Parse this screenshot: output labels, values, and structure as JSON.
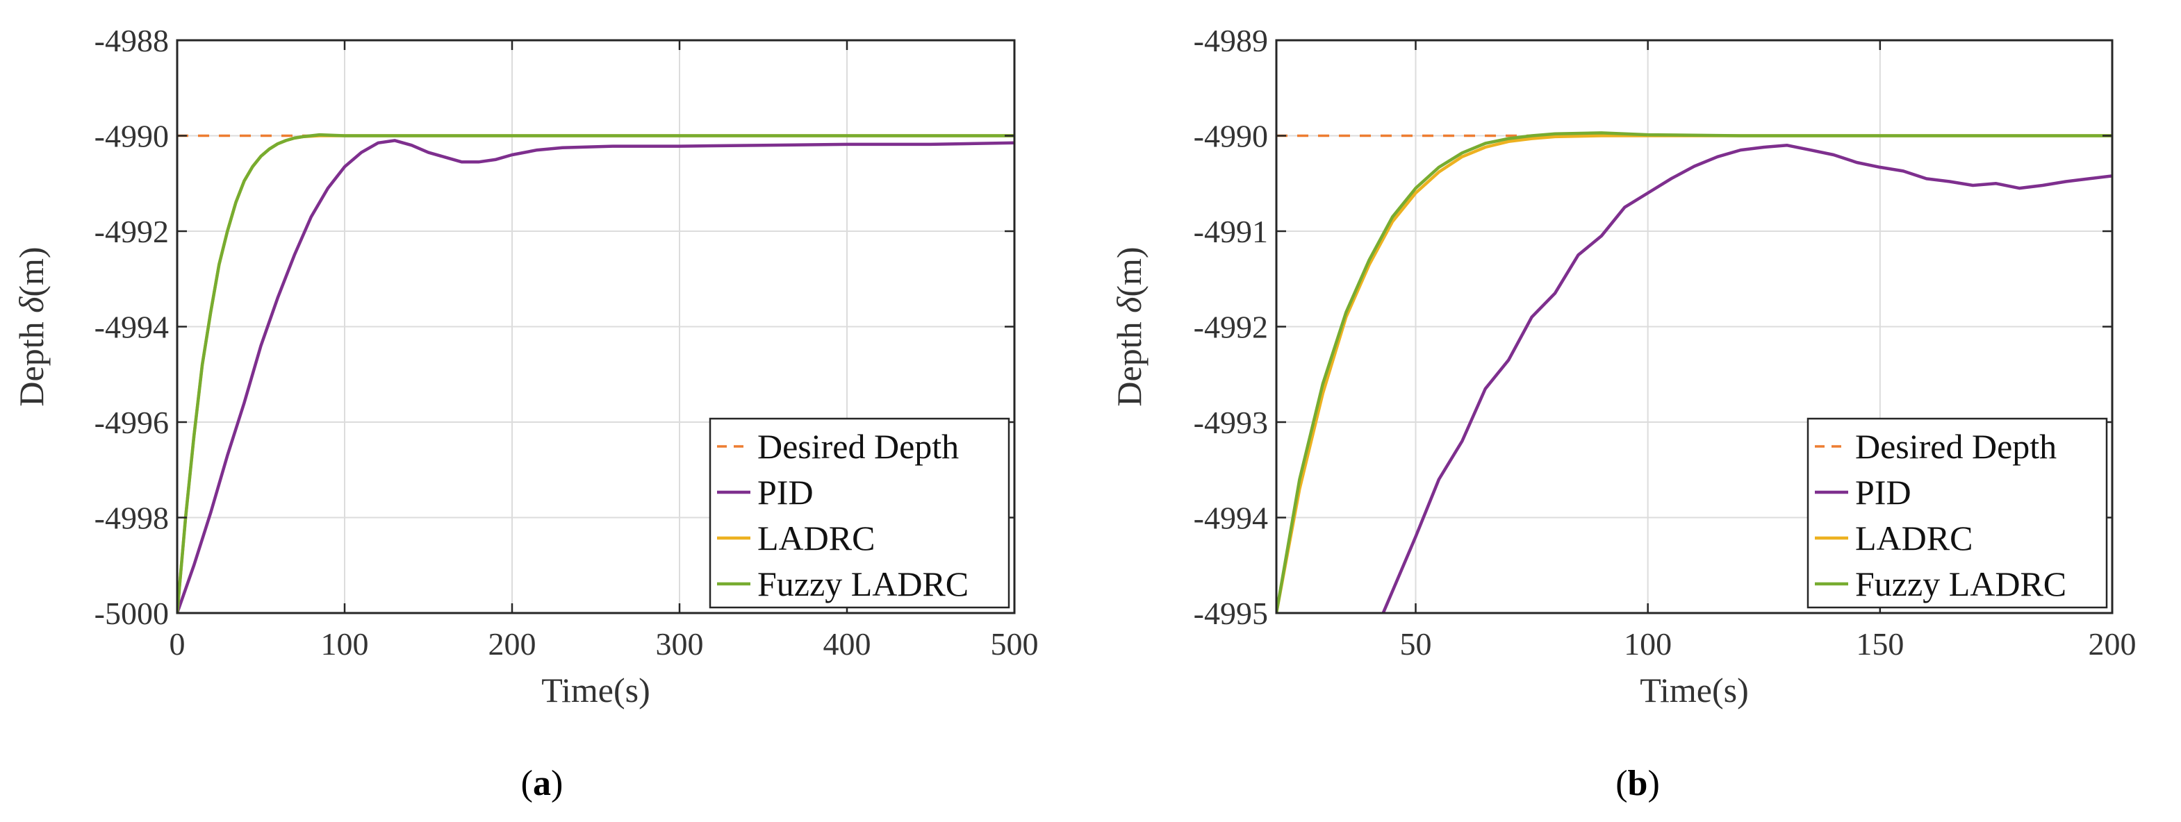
{
  "chart_data": [
    {
      "type": "line",
      "panel_label": "a",
      "xlabel": "Time(s)",
      "ylabel": "Depth δ(m)",
      "ylabel_prefix": "Depth ",
      "ylabel_symbol": "δ",
      "ylabel_suffix": "(m)",
      "xlim": [
        0,
        500
      ],
      "ylim": [
        -5000,
        -4988
      ],
      "xticks": [
        0,
        100,
        200,
        300,
        400,
        500
      ],
      "yticks": [
        -5000,
        -4998,
        -4996,
        -4994,
        -4992,
        -4990,
        -4988
      ],
      "grid": true,
      "legend": "bottom-right",
      "series": [
        {
          "name": "Desired Depth",
          "color": "#ED7D31",
          "dashed": true,
          "points": [
            [
              0,
              -4990
            ],
            [
              500,
              -4990
            ]
          ]
        },
        {
          "name": "PID",
          "color": "#7E2F8E",
          "dashed": false,
          "points": [
            [
              0,
              -5000
            ],
            [
              10,
              -4999.0
            ],
            [
              20,
              -4997.9
            ],
            [
              30,
              -4996.7
            ],
            [
              40,
              -4995.6
            ],
            [
              50,
              -4994.4
            ],
            [
              60,
              -4993.4
            ],
            [
              70,
              -4992.5
            ],
            [
              80,
              -4991.7
            ],
            [
              90,
              -4991.1
            ],
            [
              100,
              -4990.65
            ],
            [
              110,
              -4990.35
            ],
            [
              120,
              -4990.15
            ],
            [
              130,
              -4990.1
            ],
            [
              140,
              -4990.2
            ],
            [
              150,
              -4990.35
            ],
            [
              160,
              -4990.45
            ],
            [
              170,
              -4990.55
            ],
            [
              180,
              -4990.55
            ],
            [
              190,
              -4990.5
            ],
            [
              200,
              -4990.4
            ],
            [
              215,
              -4990.3
            ],
            [
              230,
              -4990.25
            ],
            [
              260,
              -4990.22
            ],
            [
              300,
              -4990.22
            ],
            [
              350,
              -4990.2
            ],
            [
              400,
              -4990.18
            ],
            [
              450,
              -4990.18
            ],
            [
              500,
              -4990.15
            ]
          ]
        },
        {
          "name": "LADRC",
          "color": "#EDB120",
          "dashed": false,
          "points": [
            [
              0,
              -5000
            ],
            [
              5,
              -4998.0
            ],
            [
              10,
              -4996.3
            ],
            [
              15,
              -4994.8
            ],
            [
              20,
              -4993.7
            ],
            [
              25,
              -4992.7
            ],
            [
              30,
              -4992.0
            ],
            [
              35,
              -4991.4
            ],
            [
              40,
              -4990.95
            ],
            [
              45,
              -4990.65
            ],
            [
              50,
              -4990.43
            ],
            [
              55,
              -4990.28
            ],
            [
              60,
              -4990.17
            ],
            [
              65,
              -4990.1
            ],
            [
              70,
              -4990.05
            ],
            [
              75,
              -4990.02
            ],
            [
              85,
              -4990.0
            ],
            [
              500,
              -4990.0
            ]
          ]
        },
        {
          "name": "Fuzzy LADRC",
          "color": "#77AC30",
          "dashed": false,
          "points": [
            [
              0,
              -5000
            ],
            [
              5,
              -4998.0
            ],
            [
              10,
              -4996.3
            ],
            [
              15,
              -4994.8
            ],
            [
              20,
              -4993.7
            ],
            [
              25,
              -4992.7
            ],
            [
              30,
              -4992.0
            ],
            [
              35,
              -4991.4
            ],
            [
              40,
              -4990.95
            ],
            [
              45,
              -4990.65
            ],
            [
              50,
              -4990.43
            ],
            [
              55,
              -4990.28
            ],
            [
              60,
              -4990.17
            ],
            [
              65,
              -4990.1
            ],
            [
              70,
              -4990.05
            ],
            [
              75,
              -4990.02
            ],
            [
              85,
              -4989.98
            ],
            [
              100,
              -4990.0
            ],
            [
              500,
              -4990.0
            ]
          ]
        }
      ]
    },
    {
      "type": "line",
      "panel_label": "b",
      "xlabel": "Time(s)",
      "ylabel": "Depth δ(m)",
      "ylabel_prefix": "Depth ",
      "ylabel_symbol": "δ",
      "ylabel_suffix": "(m)",
      "xlim": [
        20,
        200
      ],
      "ylim": [
        -4995,
        -4989
      ],
      "xticks": [
        50,
        100,
        150,
        200
      ],
      "yticks": [
        -4995,
        -4994,
        -4993,
        -4992,
        -4991,
        -4990,
        -4989
      ],
      "grid": true,
      "legend": "bottom-right",
      "series": [
        {
          "name": "Desired Depth",
          "color": "#ED7D31",
          "dashed": true,
          "points": [
            [
              20,
              -4990
            ],
            [
              200,
              -4990
            ]
          ]
        },
        {
          "name": "PID",
          "color": "#7E2F8E",
          "dashed": false,
          "points": [
            [
              43,
              -4995.0
            ],
            [
              50,
              -4994.2
            ],
            [
              55,
              -4993.6
            ],
            [
              60,
              -4993.2
            ],
            [
              65,
              -4992.65
            ],
            [
              70,
              -4992.35
            ],
            [
              75,
              -4991.9
            ],
            [
              80,
              -4991.65
            ],
            [
              85,
              -4991.25
            ],
            [
              90,
              -4991.05
            ],
            [
              95,
              -4990.75
            ],
            [
              100,
              -4990.6
            ],
            [
              105,
              -4990.45
            ],
            [
              110,
              -4990.32
            ],
            [
              115,
              -4990.22
            ],
            [
              120,
              -4990.15
            ],
            [
              125,
              -4990.12
            ],
            [
              130,
              -4990.1
            ],
            [
              135,
              -4990.15
            ],
            [
              140,
              -4990.2
            ],
            [
              145,
              -4990.28
            ],
            [
              150,
              -4990.33
            ],
            [
              155,
              -4990.37
            ],
            [
              160,
              -4990.45
            ],
            [
              165,
              -4990.48
            ],
            [
              170,
              -4990.52
            ],
            [
              175,
              -4990.5
            ],
            [
              180,
              -4990.55
            ],
            [
              185,
              -4990.52
            ],
            [
              190,
              -4990.48
            ],
            [
              195,
              -4990.45
            ],
            [
              200,
              -4990.42
            ]
          ]
        },
        {
          "name": "LADRC",
          "color": "#EDB120",
          "dashed": false,
          "points": [
            [
              20,
              -4995.0
            ],
            [
              25,
              -4993.7
            ],
            [
              30,
              -4992.7
            ],
            [
              35,
              -4991.9
            ],
            [
              40,
              -4991.35
            ],
            [
              45,
              -4990.9
            ],
            [
              50,
              -4990.6
            ],
            [
              55,
              -4990.38
            ],
            [
              60,
              -4990.22
            ],
            [
              65,
              -4990.12
            ],
            [
              70,
              -4990.06
            ],
            [
              75,
              -4990.03
            ],
            [
              80,
              -4990.01
            ],
            [
              90,
              -4990.0
            ],
            [
              200,
              -4990.0
            ]
          ]
        },
        {
          "name": "Fuzzy LADRC",
          "color": "#77AC30",
          "dashed": false,
          "points": [
            [
              20,
              -4995.0
            ],
            [
              25,
              -4993.6
            ],
            [
              30,
              -4992.6
            ],
            [
              35,
              -4991.85
            ],
            [
              40,
              -4991.3
            ],
            [
              45,
              -4990.85
            ],
            [
              50,
              -4990.55
            ],
            [
              55,
              -4990.33
            ],
            [
              60,
              -4990.18
            ],
            [
              65,
              -4990.08
            ],
            [
              70,
              -4990.03
            ],
            [
              75,
              -4990.0
            ],
            [
              80,
              -4989.98
            ],
            [
              90,
              -4989.97
            ],
            [
              100,
              -4989.99
            ],
            [
              120,
              -4990.0
            ],
            [
              200,
              -4990.0
            ]
          ]
        }
      ]
    }
  ]
}
